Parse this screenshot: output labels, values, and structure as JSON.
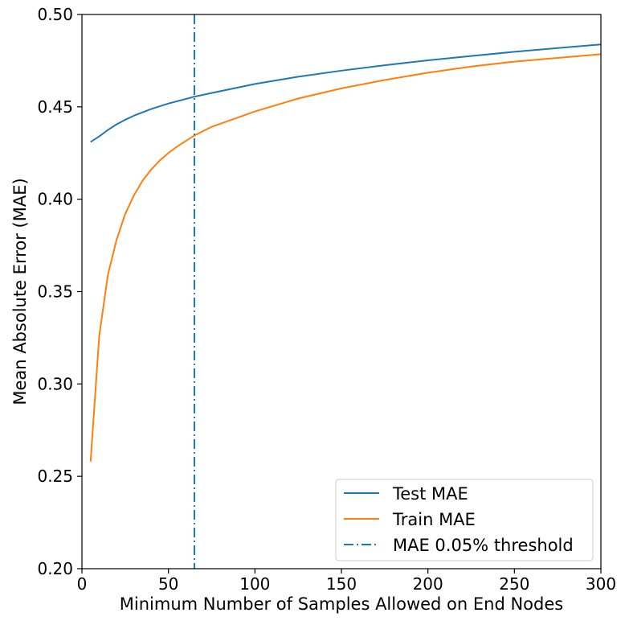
{
  "chart_data": {
    "type": "line",
    "title": "",
    "xlabel": "Minimum Number of Samples Allowed on End Nodes",
    "ylabel": "Mean Absolute Error (MAE)",
    "xlim": [
      0,
      300
    ],
    "ylim": [
      0.2,
      0.5
    ],
    "xticks": [
      0,
      50,
      100,
      150,
      200,
      250,
      300
    ],
    "xtick_labels": [
      "0",
      "50",
      "100",
      "150",
      "200",
      "250",
      "300"
    ],
    "yticks": [
      0.2,
      0.25,
      0.3,
      0.35,
      0.4,
      0.45,
      0.5
    ],
    "ytick_labels": [
      "0.20",
      "0.25",
      "0.30",
      "0.35",
      "0.40",
      "0.45",
      "0.50"
    ],
    "grid": false,
    "legend_position": "lower-right",
    "series": [
      {
        "name": "Test MAE",
        "color": "#1f77b4",
        "style": "solid",
        "x": [
          5,
          10,
          15,
          20,
          25,
          30,
          40,
          50,
          65,
          75,
          100,
          125,
          150,
          175,
          200,
          225,
          250,
          275,
          300
        ],
        "y": [
          0.431,
          0.434,
          0.4375,
          0.4405,
          0.443,
          0.4452,
          0.4488,
          0.4518,
          0.4555,
          0.4575,
          0.4624,
          0.4663,
          0.4696,
          0.4725,
          0.4752,
          0.4775,
          0.4798,
          0.4818,
          0.4838
        ]
      },
      {
        "name": "Train MAE",
        "color": "#ff7f0e",
        "style": "solid",
        "x": [
          5,
          10,
          15,
          20,
          25,
          30,
          35,
          40,
          45,
          50,
          55,
          65,
          75,
          100,
          125,
          150,
          175,
          200,
          225,
          250,
          275,
          300
        ],
        "y": [
          0.258,
          0.326,
          0.359,
          0.378,
          0.392,
          0.402,
          0.41,
          0.416,
          0.421,
          0.425,
          0.4285,
          0.4345,
          0.4392,
          0.4475,
          0.4545,
          0.46,
          0.4645,
          0.4685,
          0.4718,
          0.4745,
          0.4765,
          0.4785
        ]
      },
      {
        "name": "MAE 0.05% threshold",
        "color": "#1f77b4",
        "style": "dashdot",
        "type": "vline",
        "x_value": 65
      }
    ]
  }
}
